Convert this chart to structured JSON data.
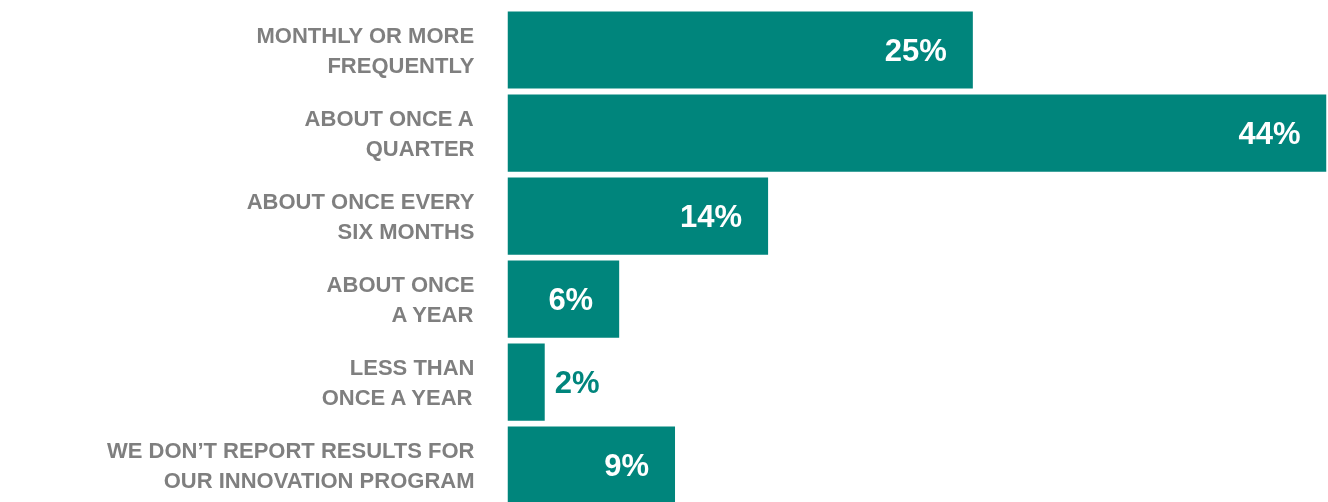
{
  "chart_data": {
    "type": "bar",
    "orientation": "horizontal",
    "categories": [
      "MONTHLY OR MORE\nFREQUENTLY",
      "ABOUT ONCE A\nQUARTER",
      "ABOUT ONCE EVERY\nSIX MONTHS",
      "ABOUT ONCE\nA YEAR",
      "LESS THAN\nONCE A YEAR",
      "WE DON’T REPORT RESULTS FOR\nOUR INNOVATION PROGRAM"
    ],
    "values": [
      25,
      44,
      14,
      6,
      2,
      9
    ],
    "value_labels": [
      "25%",
      "44%",
      "14%",
      "6%",
      "2%",
      "9%"
    ],
    "color": "#00857c",
    "grid": false
  }
}
